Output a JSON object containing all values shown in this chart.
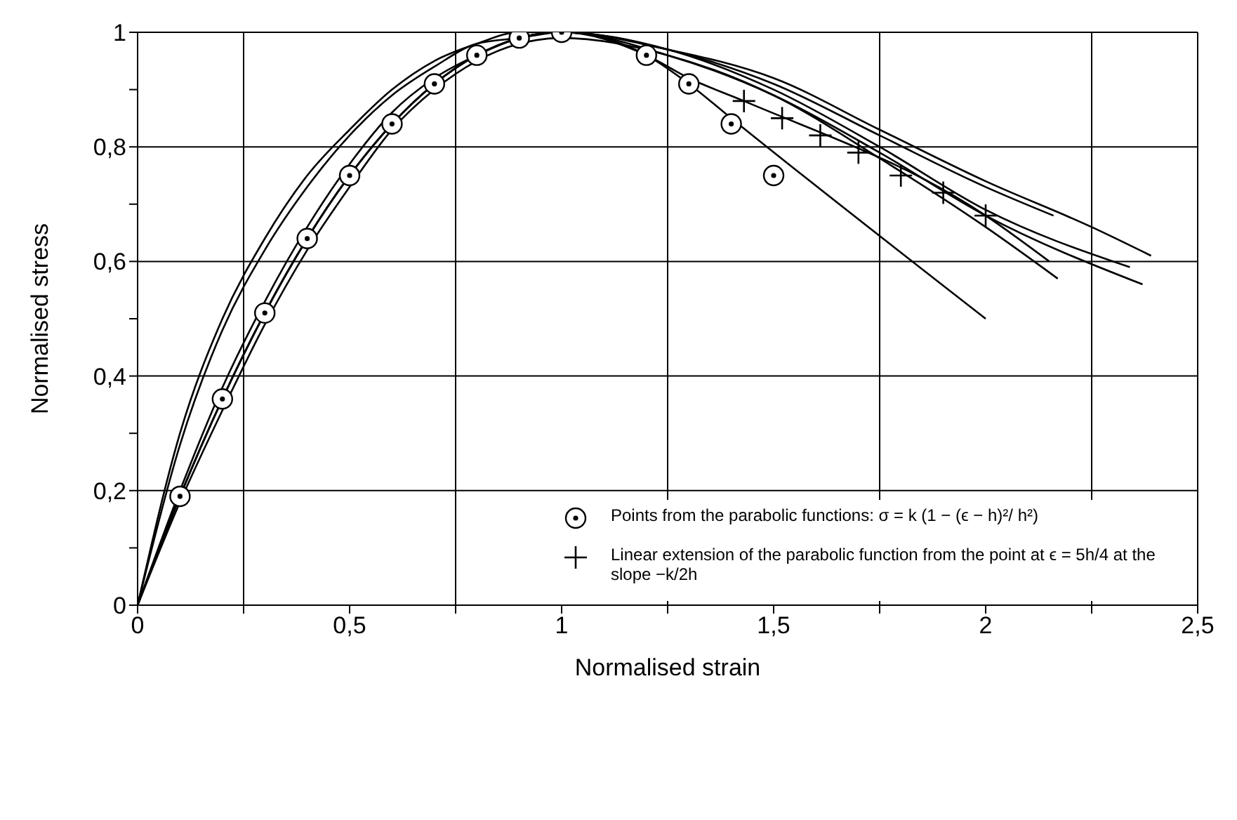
{
  "chart_data": {
    "type": "line",
    "xlabel": "Normalised strain",
    "ylabel": "Normalised stress",
    "xlim": [
      0,
      2.5
    ],
    "ylim": [
      0,
      1
    ],
    "xticks": [
      0,
      {
        "value": 0.25,
        "label": null
      },
      {
        "value": 0.5,
        "label": "0,5"
      },
      {
        "value": 0.75,
        "label": null
      },
      1,
      {
        "value": 1.25,
        "label": null
      },
      {
        "value": 1.5,
        "label": "1,5"
      },
      {
        "value": 1.75,
        "label": null
      },
      2,
      {
        "value": 2.25,
        "label": null
      },
      {
        "value": 2.5,
        "label": "2,5"
      }
    ],
    "yticks": [
      0,
      {
        "value": 0.1,
        "label": null
      },
      {
        "value": 0.2,
        "label": "0,2"
      },
      {
        "value": 0.3,
        "label": null
      },
      {
        "value": 0.4,
        "label": "0,4"
      },
      {
        "value": 0.5,
        "label": null
      },
      {
        "value": 0.6,
        "label": "0,6"
      },
      {
        "value": 0.7,
        "label": null
      },
      {
        "value": 0.8,
        "label": "0,8"
      },
      {
        "value": 0.9,
        "label": null
      },
      1
    ],
    "grid": true,
    "legend": "bottom right",
    "line_style": "solid",
    "series": [
      {
        "color": "#000000",
        "x": [
          0,
          0.1,
          0.2,
          0.3,
          0.4,
          0.5,
          0.6,
          0.7,
          0.8,
          0.9,
          1.0,
          1.25,
          1.5,
          1.75,
          2.0,
          2.16
        ],
        "values": [
          0,
          0.3,
          0.5,
          0.64,
          0.75,
          0.83,
          0.9,
          0.95,
          0.98,
          1.0,
          1.0,
          0.97,
          0.91,
          0.82,
          0.73,
          0.68
        ]
      },
      {
        "color": "#000000",
        "x": [
          0,
          0.1,
          0.2,
          0.3,
          0.4,
          0.5,
          0.6,
          0.7,
          0.8,
          0.9,
          1.0,
          1.25,
          1.5,
          1.75,
          2.0,
          2.25,
          2.39
        ],
        "values": [
          0,
          0.28,
          0.48,
          0.62,
          0.73,
          0.82,
          0.89,
          0.94,
          0.98,
          0.99,
          1.0,
          0.97,
          0.92,
          0.83,
          0.74,
          0.66,
          0.61
        ]
      },
      {
        "color": "#000000",
        "x": [
          0,
          0.1,
          0.2,
          0.3,
          0.4,
          0.5,
          0.6,
          0.7,
          0.8,
          0.9,
          1.0,
          1.25,
          1.5,
          1.75,
          2.0,
          2.34
        ],
        "values": [
          0,
          0.2,
          0.38,
          0.53,
          0.66,
          0.77,
          0.86,
          0.92,
          0.96,
          0.99,
          1.0,
          0.97,
          0.9,
          0.8,
          0.69,
          0.59
        ]
      },
      {
        "color": "#000000",
        "x": [
          0,
          0.1,
          0.2,
          0.3,
          0.4,
          0.5,
          0.6,
          0.7,
          0.8,
          0.9,
          1.0,
          1.25,
          1.5,
          1.75,
          2.0,
          2.37
        ],
        "values": [
          0,
          0.19,
          0.36,
          0.51,
          0.64,
          0.75,
          0.84,
          0.91,
          0.96,
          0.99,
          1.0,
          0.96,
          0.89,
          0.79,
          0.68,
          0.56
        ]
      },
      {
        "color": "#000000",
        "x": [
          0,
          0.1,
          0.2,
          0.3,
          0.4,
          0.5,
          0.6,
          0.7,
          0.8,
          0.9,
          1.0,
          1.25,
          1.5,
          1.75,
          2.0,
          2.17
        ],
        "values": [
          0,
          0.18,
          0.34,
          0.49,
          0.62,
          0.73,
          0.83,
          0.9,
          0.95,
          0.98,
          0.99,
          0.96,
          0.89,
          0.78,
          0.66,
          0.57
        ]
      },
      {
        "color": "#000000",
        "x": [
          0,
          0.1,
          0.2,
          0.3,
          0.4,
          0.5,
          0.6,
          0.7,
          0.8,
          0.9,
          1.0,
          1.2,
          1.3,
          1.43,
          2.0,
          2.15
        ],
        "values": [
          0,
          0.19,
          0.36,
          0.51,
          0.64,
          0.75,
          0.84,
          0.91,
          0.96,
          0.99,
          1.0,
          0.96,
          0.92,
          0.88,
          0.68,
          0.6
        ]
      },
      {
        "color": "#000000",
        "x": [
          0,
          0.1,
          0.2,
          0.3,
          0.4,
          0.5,
          0.6,
          0.7,
          0.8,
          0.9,
          1.0,
          1.2,
          1.3,
          1.4,
          2.0
        ],
        "values": [
          0,
          0.19,
          0.36,
          0.51,
          0.64,
          0.75,
          0.84,
          0.91,
          0.96,
          0.99,
          1.0,
          0.96,
          0.91,
          0.85,
          0.5
        ]
      },
      {
        "type": "scatter",
        "marker": "circle",
        "color": "#000000",
        "name": "Points from the parabolic functions: σ = k (1 − (ϵ − h)²/ h²)",
        "x": [
          0.1,
          0.2,
          0.3,
          0.4,
          0.5,
          0.6,
          0.7,
          0.8,
          0.9,
          1.0,
          1.2,
          1.3,
          1.4,
          1.5
        ],
        "values": [
          0.19,
          0.36,
          0.51,
          0.64,
          0.75,
          0.84,
          0.91,
          0.96,
          0.99,
          1.0,
          0.96,
          0.91,
          0.84,
          0.75
        ]
      },
      {
        "type": "scatter",
        "marker": "cross",
        "color": "#000000",
        "name": "Linear extension of the parabolic function from the point at ϵ = 5h/4 at the slope −k/2h",
        "x": [
          1.43,
          1.52,
          1.61,
          1.7,
          1.8,
          1.9,
          2.0
        ],
        "values": [
          0.88,
          0.85,
          0.82,
          0.79,
          0.75,
          0.72,
          0.68
        ]
      }
    ]
  }
}
